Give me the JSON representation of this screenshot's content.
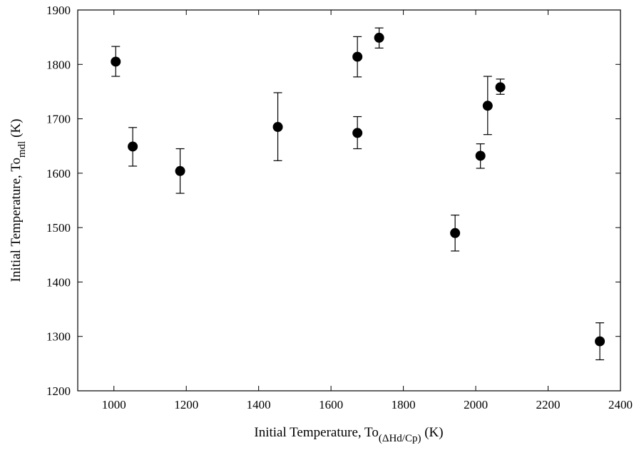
{
  "chart_data": {
    "type": "scatter",
    "title": "",
    "xlabel": {
      "main": "Initial Temperature, To",
      "subscript": "(ΔHd/Cp)",
      "unit": " (K)"
    },
    "ylabel": {
      "main": "Initial Temperature, To",
      "subscript": "mdl",
      "unit": " (K)"
    },
    "xlim": [
      900,
      2400
    ],
    "ylim": [
      1200,
      1900
    ],
    "xticks": [
      1000,
      1200,
      1400,
      1600,
      1800,
      2000,
      2200,
      2400
    ],
    "yticks": [
      1200,
      1300,
      1400,
      1500,
      1600,
      1700,
      1800,
      1900
    ],
    "grid": false,
    "marker_color": "#000000",
    "points": [
      {
        "x": 1005,
        "y": 1805,
        "err_low": 1778,
        "err_high": 1833
      },
      {
        "x": 1052,
        "y": 1649,
        "err_low": 1613,
        "err_high": 1684
      },
      {
        "x": 1183,
        "y": 1604,
        "err_low": 1563,
        "err_high": 1645
      },
      {
        "x": 1453,
        "y": 1685,
        "err_low": 1623,
        "err_high": 1748
      },
      {
        "x": 1673,
        "y": 1674,
        "err_low": 1645,
        "err_high": 1704
      },
      {
        "x": 1673,
        "y": 1814,
        "err_low": 1777,
        "err_high": 1851
      },
      {
        "x": 1733,
        "y": 1849,
        "err_low": 1830,
        "err_high": 1867
      },
      {
        "x": 1943,
        "y": 1490,
        "err_low": 1457,
        "err_high": 1523
      },
      {
        "x": 2013,
        "y": 1632,
        "err_low": 1609,
        "err_high": 1654
      },
      {
        "x": 2033,
        "y": 1724,
        "err_low": 1671,
        "err_high": 1778
      },
      {
        "x": 2068,
        "y": 1758,
        "err_low": 1745,
        "err_high": 1773
      },
      {
        "x": 2343,
        "y": 1291,
        "err_low": 1257,
        "err_high": 1325
      }
    ]
  }
}
